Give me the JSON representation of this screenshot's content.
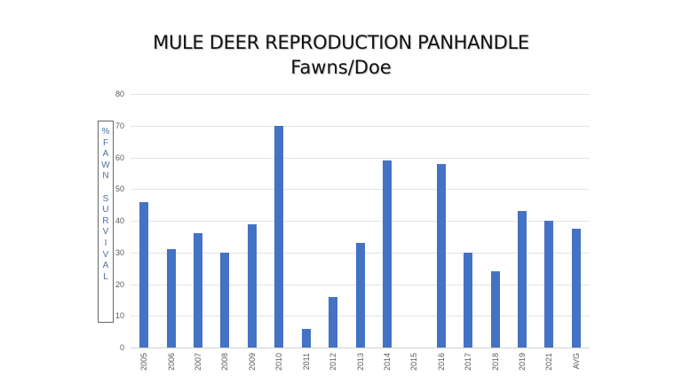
{
  "chart_data": {
    "type": "bar",
    "title": "MULE DEER REPRODUCTION PANHANDLE",
    "subtitle": "Fawns/Doe",
    "xlabel": "",
    "ylabel": "% FAWN SURVIVAL",
    "ylim": [
      0,
      80
    ],
    "yticks": [
      0,
      10,
      20,
      30,
      40,
      50,
      60,
      70,
      80
    ],
    "grid": true,
    "legend": "none",
    "bar_color": "#4472c4",
    "categories": [
      "2005",
      "2006",
      "2007",
      "2008",
      "2009",
      "2010",
      "2011",
      "2012",
      "2013",
      "2014",
      "2015",
      "2016",
      "2017",
      "2018",
      "2019",
      "2021",
      "AVG"
    ],
    "values": [
      46,
      31,
      36,
      30,
      39,
      70,
      6,
      16,
      33,
      59,
      0,
      58,
      30,
      24,
      43,
      40,
      37.5
    ]
  },
  "ylabel_letters": [
    "%",
    "F",
    "A",
    "W",
    "N",
    "",
    "S",
    "U",
    "R",
    "V",
    "I",
    "V",
    "A",
    "L"
  ]
}
